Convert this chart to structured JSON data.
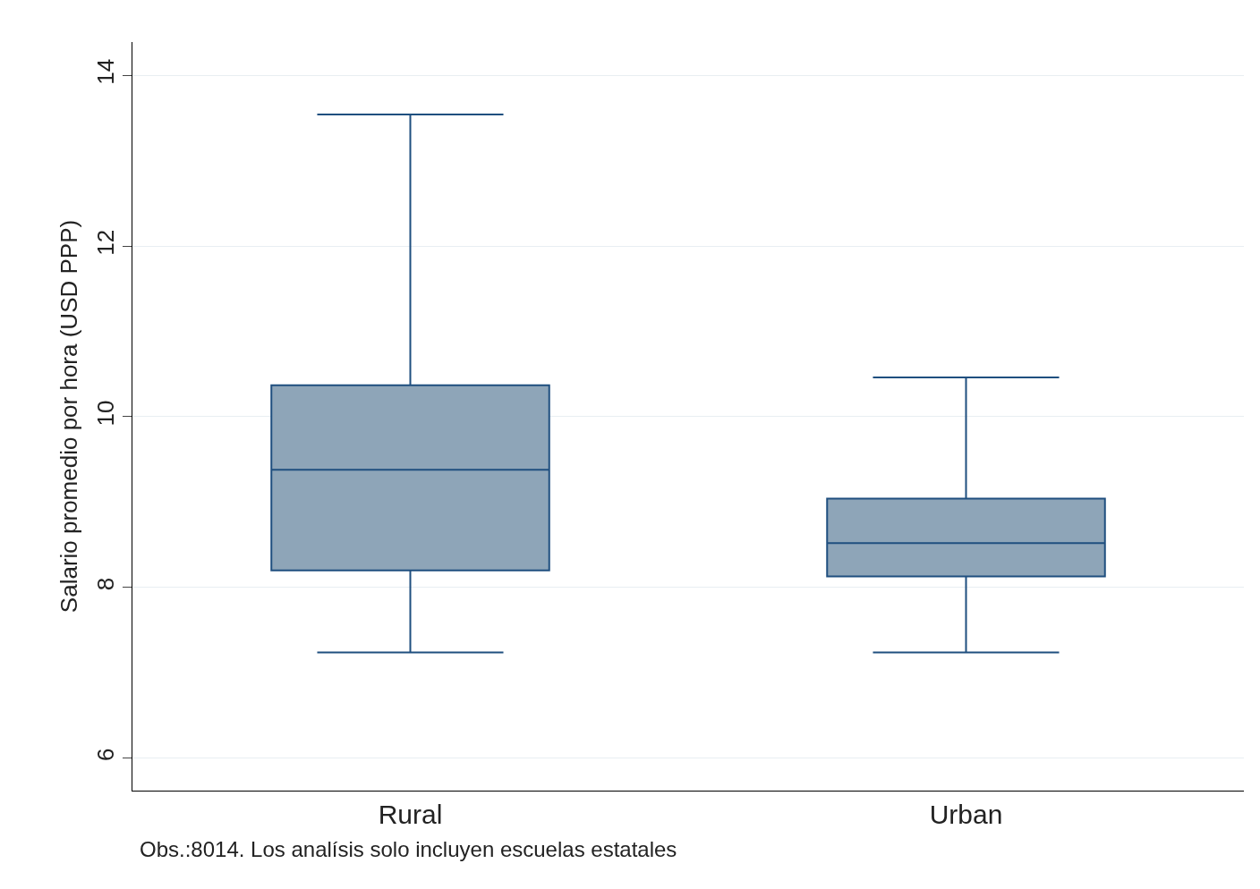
{
  "chart_data": {
    "type": "box",
    "ylabel": "Salario promedio por hora (USD PPP)",
    "categories": [
      "Rural",
      "Urban"
    ],
    "boxes": [
      {
        "low": 7.24,
        "q1": 8.2,
        "median": 9.38,
        "q3": 10.37,
        "high": 13.54
      },
      {
        "low": 7.24,
        "q1": 8.13,
        "median": 8.52,
        "q3": 9.04,
        "high": 10.46
      }
    ],
    "color": "#8ea5b8",
    "ylim": [
      5.62,
      14.39
    ],
    "yticks": [
      6,
      8,
      10,
      12,
      14
    ],
    "grid": "y",
    "annotations": [
      "Obs.:8014. Los analísis solo incluyen escuelas estatales"
    ]
  }
}
